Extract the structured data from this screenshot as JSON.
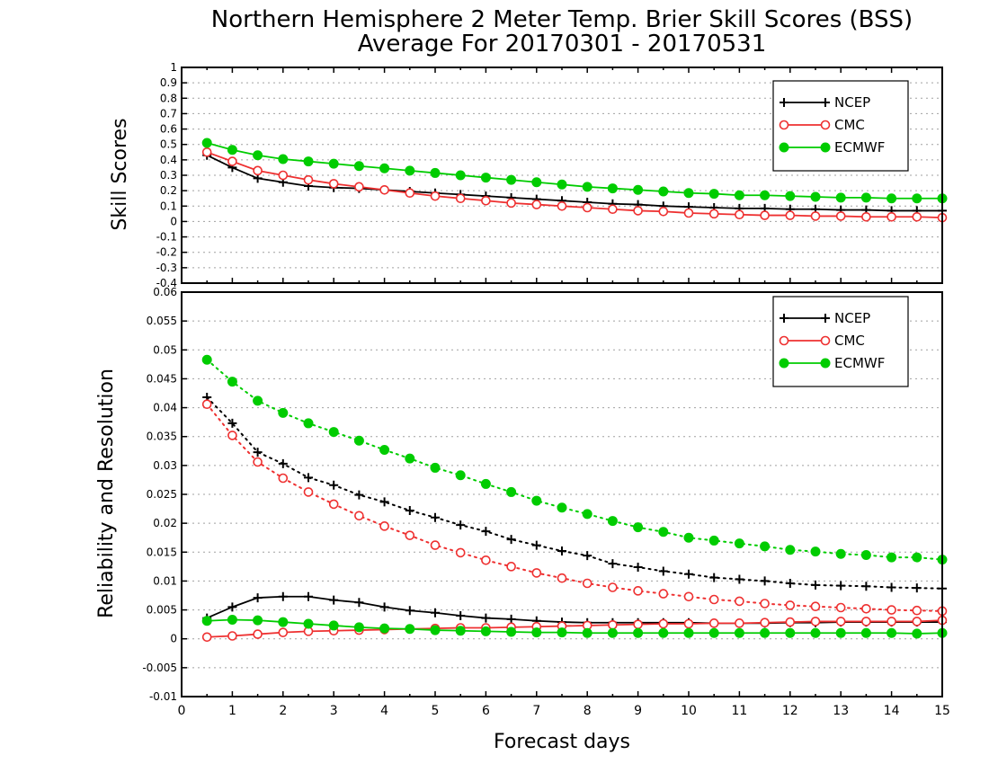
{
  "title_line1": "Northern Hemisphere 2 Meter Temp. Brier Skill Scores (BSS)",
  "title_line2": "Average For 20170301 - 20170531",
  "colors": {
    "NCEP": "#000000",
    "CMC": "#ee3030",
    "ECMWF": "#00cc00"
  },
  "chart_data": [
    {
      "type": "line",
      "title": "Northern Hemisphere 2 Meter Temp. Brier Skill Scores (BSS)",
      "subtitle": "Average For 20170301 - 20170531",
      "xlabel": "",
      "ylabel": "Skill Scores",
      "xlim": [
        0,
        15
      ],
      "ylim": [
        -0.4,
        1
      ],
      "yticks": [
        "-0.4",
        "-0.3",
        "-0.2",
        "-0.1",
        "0",
        "0.1",
        "0.2",
        "0.3",
        "0.4",
        "0.5",
        "0.6",
        "0.7",
        "0.8",
        "0.9",
        "1"
      ],
      "grid": true,
      "legend": "top-right",
      "x": [
        0.5,
        1,
        1.5,
        2,
        2.5,
        3,
        3.5,
        4,
        4.5,
        5,
        5.5,
        6,
        6.5,
        7,
        7.5,
        8,
        8.5,
        9,
        9.5,
        10,
        10.5,
        11,
        11.5,
        12,
        12.5,
        13,
        13.5,
        14,
        14.5,
        15
      ],
      "series": [
        {
          "name": "NCEP",
          "marker": "plus",
          "style": "solid",
          "values": [
            0.43,
            0.35,
            0.28,
            0.255,
            0.23,
            0.22,
            0.215,
            0.205,
            0.195,
            0.185,
            0.175,
            0.165,
            0.155,
            0.145,
            0.135,
            0.125,
            0.115,
            0.11,
            0.1,
            0.095,
            0.09,
            0.085,
            0.085,
            0.08,
            0.08,
            0.075,
            0.075,
            0.07,
            0.07,
            0.07
          ]
        },
        {
          "name": "CMC",
          "marker": "open-circle",
          "style": "solid",
          "values": [
            0.45,
            0.39,
            0.33,
            0.3,
            0.27,
            0.245,
            0.225,
            0.205,
            0.185,
            0.165,
            0.15,
            0.135,
            0.12,
            0.11,
            0.1,
            0.09,
            0.08,
            0.07,
            0.065,
            0.055,
            0.05,
            0.045,
            0.04,
            0.04,
            0.035,
            0.035,
            0.03,
            0.03,
            0.03,
            0.025
          ]
        },
        {
          "name": "ECMWF",
          "marker": "filled-circle",
          "style": "solid",
          "values": [
            0.51,
            0.465,
            0.43,
            0.405,
            0.39,
            0.375,
            0.36,
            0.345,
            0.33,
            0.315,
            0.3,
            0.285,
            0.27,
            0.255,
            0.24,
            0.225,
            0.215,
            0.205,
            0.195,
            0.185,
            0.18,
            0.17,
            0.17,
            0.165,
            0.16,
            0.155,
            0.155,
            0.15,
            0.15,
            0.15
          ]
        }
      ]
    },
    {
      "type": "line",
      "title": "",
      "xlabel": "Forecast days",
      "ylabel": "Reliability and Resolution",
      "xlim": [
        0,
        15
      ],
      "xticks": [
        "0",
        "1",
        "2",
        "3",
        "4",
        "5",
        "6",
        "7",
        "8",
        "9",
        "10",
        "11",
        "12",
        "13",
        "14",
        "15"
      ],
      "ylim": [
        -0.01,
        0.06
      ],
      "yticks": [
        "-0.01",
        "-0.005",
        "0",
        "0.005",
        "0.01",
        "0.015",
        "0.02",
        "0.025",
        "0.03",
        "0.035",
        "0.04",
        "0.045",
        "0.05",
        "0.055",
        "0.06"
      ],
      "grid": true,
      "legend": "top-right",
      "x": [
        0.5,
        1,
        1.5,
        2,
        2.5,
        3,
        3.5,
        4,
        4.5,
        5,
        5.5,
        6,
        6.5,
        7,
        7.5,
        8,
        8.5,
        9,
        9.5,
        10,
        10.5,
        11,
        11.5,
        12,
        12.5,
        13,
        13.5,
        14,
        14.5,
        15
      ],
      "legend_entries": [
        {
          "name": "NCEP",
          "marker": "plus"
        },
        {
          "name": "CMC",
          "marker": "open-circle"
        },
        {
          "name": "ECMWF",
          "marker": "filled-circle"
        }
      ],
      "series": [
        {
          "name": "NCEP",
          "quantity": "Resolution",
          "marker": "plus",
          "style": "dotted",
          "values": [
            0.0418,
            0.0373,
            0.0323,
            0.0303,
            0.0279,
            0.0266,
            0.0249,
            0.0237,
            0.0222,
            0.021,
            0.0197,
            0.0186,
            0.0172,
            0.0162,
            0.0152,
            0.0144,
            0.013,
            0.0124,
            0.0117,
            0.0112,
            0.0106,
            0.0103,
            0.01,
            0.0096,
            0.0093,
            0.0092,
            0.0091,
            0.0089,
            0.0088,
            0.0087
          ]
        },
        {
          "name": "CMC",
          "quantity": "Resolution",
          "marker": "open-circle",
          "style": "dotted",
          "values": [
            0.0406,
            0.0352,
            0.0306,
            0.0278,
            0.0254,
            0.0233,
            0.0213,
            0.0195,
            0.0179,
            0.0162,
            0.0149,
            0.0136,
            0.0125,
            0.0114,
            0.0105,
            0.0096,
            0.0089,
            0.0083,
            0.0078,
            0.0073,
            0.0068,
            0.0065,
            0.0061,
            0.0058,
            0.0056,
            0.0054,
            0.0052,
            0.005,
            0.0049,
            0.0048
          ]
        },
        {
          "name": "ECMWF",
          "quantity": "Resolution",
          "marker": "filled-circle",
          "style": "dotted",
          "values": [
            0.0483,
            0.0445,
            0.0412,
            0.0391,
            0.0373,
            0.0358,
            0.0343,
            0.0327,
            0.0312,
            0.0296,
            0.0283,
            0.0268,
            0.0254,
            0.0239,
            0.0227,
            0.0216,
            0.0204,
            0.0193,
            0.0185,
            0.0175,
            0.017,
            0.0165,
            0.016,
            0.0154,
            0.0151,
            0.0147,
            0.0145,
            0.0141,
            0.0141,
            0.0137
          ]
        },
        {
          "name": "NCEP",
          "quantity": "Reliability",
          "marker": "plus",
          "style": "solid",
          "values": [
            0.0036,
            0.0055,
            0.0071,
            0.0073,
            0.0073,
            0.0067,
            0.0063,
            0.0055,
            0.0049,
            0.0045,
            0.004,
            0.0036,
            0.0034,
            0.0031,
            0.0029,
            0.0028,
            0.0028,
            0.0028,
            0.0028,
            0.0028,
            0.0027,
            0.0027,
            0.0027,
            0.0028,
            0.0028,
            0.0029,
            0.0029,
            0.0029,
            0.0029,
            0.0029
          ]
        },
        {
          "name": "CMC",
          "quantity": "Reliability",
          "marker": "open-circle",
          "style": "solid",
          "values": [
            0.0003,
            0.0005,
            0.0008,
            0.0011,
            0.0013,
            0.0014,
            0.0015,
            0.0016,
            0.0017,
            0.0018,
            0.0019,
            0.0019,
            0.002,
            0.0021,
            0.0022,
            0.0023,
            0.0024,
            0.0025,
            0.0026,
            0.0026,
            0.0027,
            0.0027,
            0.0028,
            0.0029,
            0.003,
            0.003,
            0.003,
            0.003,
            0.003,
            0.0032
          ]
        },
        {
          "name": "ECMWF",
          "quantity": "Reliability",
          "marker": "filled-circle",
          "style": "solid",
          "values": [
            0.0031,
            0.0033,
            0.0032,
            0.0029,
            0.0026,
            0.0023,
            0.002,
            0.0018,
            0.0017,
            0.0015,
            0.0014,
            0.0013,
            0.0012,
            0.0011,
            0.0011,
            0.001,
            0.001,
            0.001,
            0.001,
            0.001,
            0.001,
            0.001,
            0.001,
            0.001,
            0.001,
            0.001,
            0.001,
            0.001,
            0.0009,
            0.001
          ]
        }
      ]
    }
  ]
}
